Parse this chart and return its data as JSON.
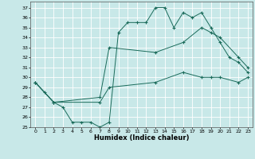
{
  "xlabel": "Humidex (Indice chaleur)",
  "bg_color": "#c8e8e8",
  "line_color": "#1a6b5a",
  "grid_color": "#ffffff",
  "xlim": [
    -0.5,
    23.5
  ],
  "ylim": [
    25,
    37.6
  ],
  "yticks": [
    25,
    26,
    27,
    28,
    29,
    30,
    31,
    32,
    33,
    34,
    35,
    36,
    37
  ],
  "xticks": [
    0,
    1,
    2,
    3,
    4,
    5,
    6,
    7,
    8,
    9,
    10,
    11,
    12,
    13,
    14,
    15,
    16,
    17,
    18,
    19,
    20,
    21,
    22,
    23
  ],
  "line1_x": [
    0,
    1,
    2,
    3,
    4,
    5,
    6,
    7,
    8,
    9,
    10,
    11,
    12,
    13,
    14,
    15,
    16,
    17,
    18,
    19,
    20,
    21,
    22,
    23
  ],
  "line1_y": [
    29.5,
    28.5,
    27.5,
    27.0,
    25.5,
    25.5,
    25.5,
    25.0,
    25.5,
    34.5,
    35.5,
    35.5,
    35.5,
    37.0,
    37.0,
    35.0,
    36.5,
    36.0,
    36.5,
    35.0,
    33.5,
    32.0,
    31.5,
    30.5
  ],
  "line2_x": [
    0,
    2,
    7,
    8,
    13,
    16,
    18,
    19,
    20,
    22,
    23
  ],
  "line2_y": [
    29.5,
    27.5,
    28.0,
    33.0,
    32.5,
    33.5,
    35.0,
    34.5,
    34.0,
    32.0,
    31.0
  ],
  "line3_x": [
    0,
    2,
    7,
    8,
    13,
    16,
    18,
    19,
    20,
    22,
    23
  ],
  "line3_y": [
    29.5,
    27.5,
    27.5,
    29.0,
    29.5,
    30.5,
    30.0,
    30.0,
    30.0,
    29.5,
    30.0
  ]
}
